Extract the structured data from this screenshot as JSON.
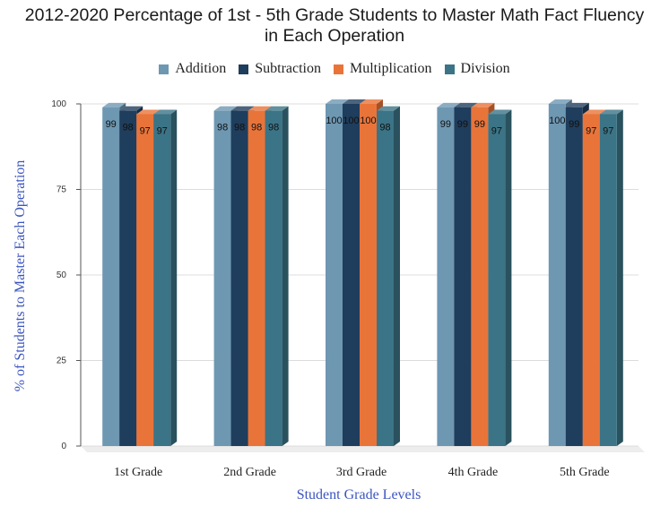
{
  "chart_data": {
    "type": "bar",
    "title_lines": [
      "2012-2020 Percentage of 1st - 5th Grade Students to Master Math Fact Fluency",
      "in Each Operation"
    ],
    "xlabel": "Student Grade Levels",
    "ylabel": "% of Students to Master Each Operation",
    "categories": [
      "1st Grade",
      "2nd Grade",
      "3rd Grade",
      "4th Grade",
      "5th Grade"
    ],
    "series": [
      {
        "name": "Addition",
        "color": "#6e97b2",
        "values": [
          99,
          98,
          100,
          99,
          100
        ]
      },
      {
        "name": "Subtraction",
        "color": "#1f3d5c",
        "values": [
          98,
          98,
          100,
          99,
          99
        ]
      },
      {
        "name": "Multiplication",
        "color": "#e9743a",
        "values": [
          97,
          98,
          100,
          99,
          97
        ]
      },
      {
        "name": "Division",
        "color": "#3b7486",
        "values": [
          97,
          98,
          98,
          97,
          97
        ]
      }
    ],
    "ylim": [
      0,
      100
    ],
    "yticks": [
      "0",
      "25",
      "50",
      "75",
      "100"
    ],
    "grid": true,
    "legend_position": "top",
    "three_d": true
  }
}
